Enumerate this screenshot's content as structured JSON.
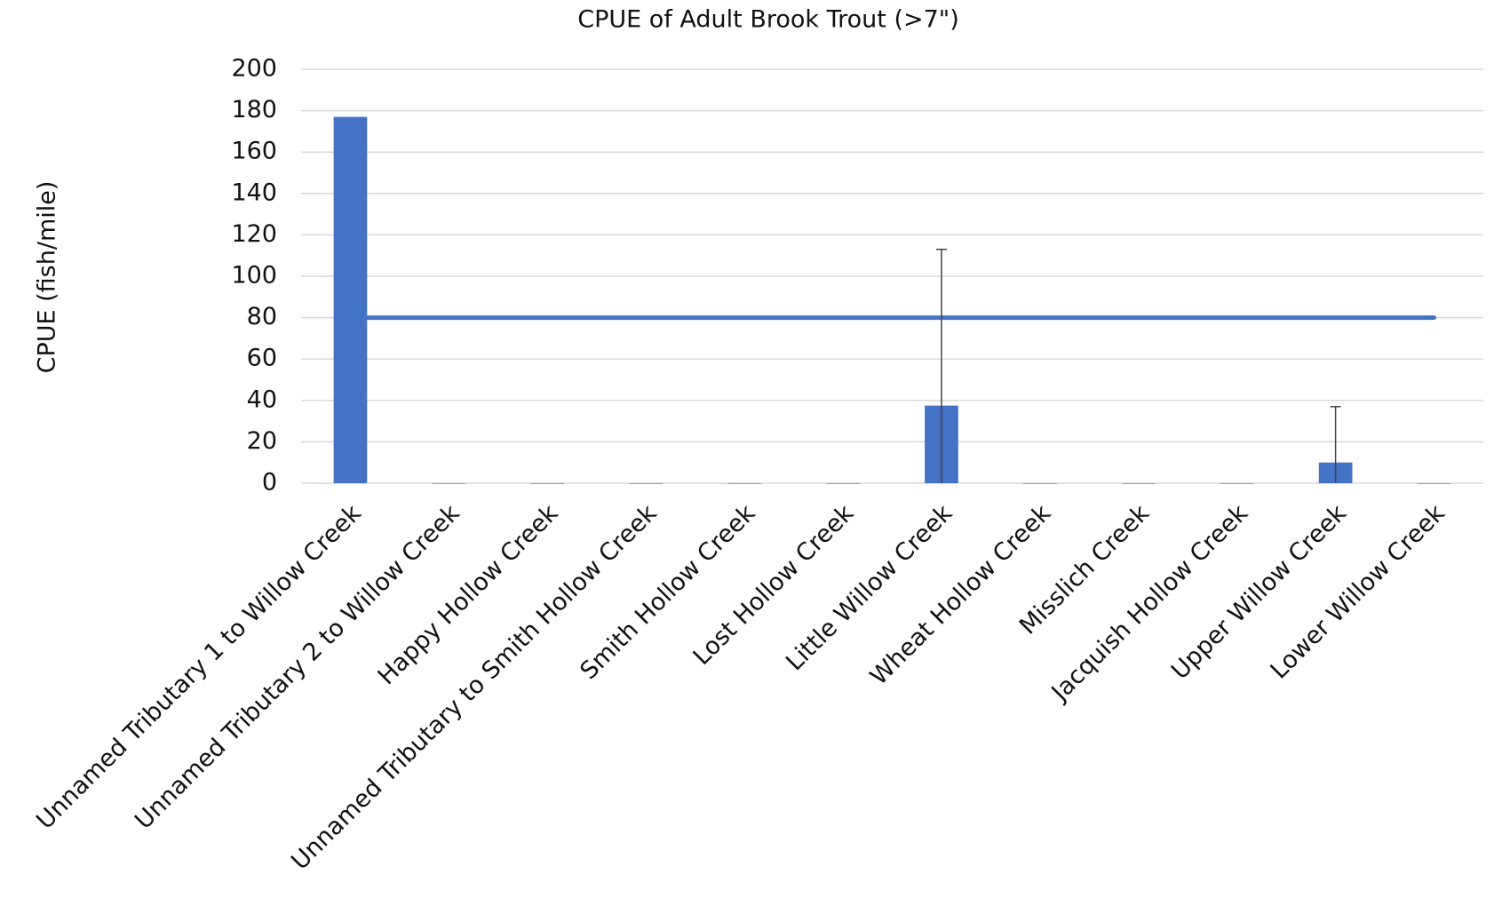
{
  "chart_data": {
    "type": "bar",
    "title": "CPUE of Adult Brook Trout (>7\")",
    "y_label": "CPUE (fish/mile)",
    "categories": [
      "Unnamed Tributary 1 to Willow Creek",
      "Unnamed Tributary 2 to Willow Creek",
      "Happy Hollow Creek",
      "Unnamed Tributary to Smith Hollow Creek",
      "Smith Hollow Creek",
      "Lost Hollow Creek",
      "Little Willow Creek",
      "Wheat Hollow Creek",
      "Misslich Creek",
      "Jacquish Hollow Creek",
      "Upper Willow Creek",
      "Lower Willow Creek"
    ],
    "values": [
      177,
      0,
      0,
      0,
      0,
      0,
      37.5,
      0,
      0,
      0,
      10,
      0
    ],
    "errors": [
      null,
      null,
      null,
      null,
      null,
      null,
      75.5,
      null,
      null,
      null,
      27,
      null
    ],
    "reference_line": 80,
    "color": "#4472c4",
    "ylim": [
      0,
      200
    ],
    "yticks": [
      0,
      20,
      40,
      60,
      80,
      100,
      120,
      140,
      160,
      180,
      200
    ],
    "grid": true
  }
}
